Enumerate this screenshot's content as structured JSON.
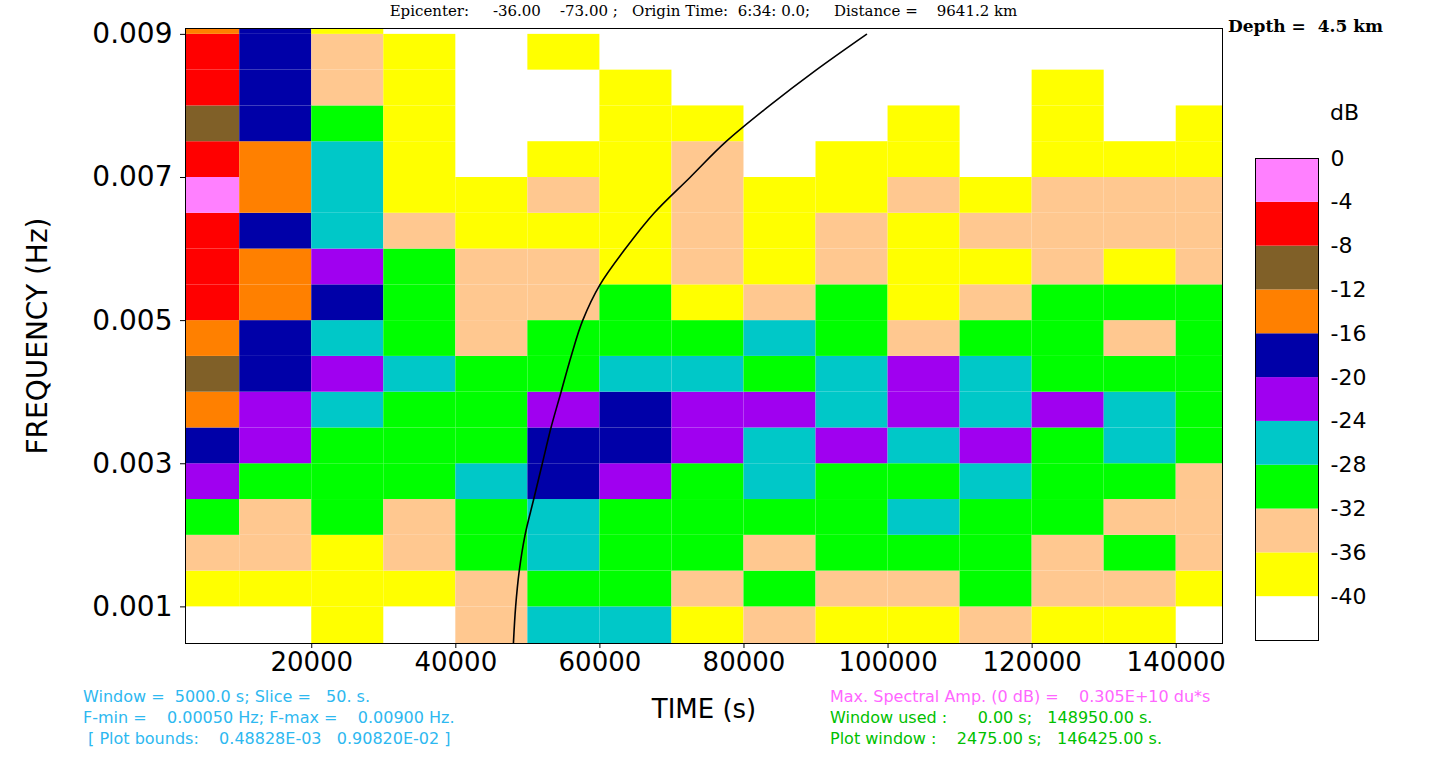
{
  "chart_data": {
    "type": "heatmap",
    "title": "Epicenter:     -36.00    -73.00 ;   Origin Time:  6:34: 0.0;     Distance =    9641.2 km",
    "subtitle": "Depth =  4.5 km",
    "x_label": "TIME (s)",
    "y_label": "FREQUENCY (Hz)",
    "xlim": [
      2475,
      146425
    ],
    "ylim": [
      0.00048828,
      0.009082
    ],
    "xticks": [
      20000,
      40000,
      60000,
      80000,
      100000,
      120000,
      140000
    ],
    "yticks": [
      0.001,
      0.003,
      0.005,
      0.007,
      0.009
    ],
    "time_bins": [
      2475,
      10000,
      20000,
      30000,
      40000,
      50000,
      60000,
      70000,
      80000,
      90000,
      100000,
      110000,
      120000,
      130000,
      140000,
      146425
    ],
    "frequency_bins": [
      0.00048828,
      0.001,
      0.0015,
      0.002,
      0.0025,
      0.003,
      0.0035,
      0.004,
      0.0045,
      0.005,
      0.0055,
      0.006,
      0.0065,
      0.007,
      0.0075,
      0.008,
      0.0085,
      0.009,
      0.009082
    ],
    "values": [
      [
        null,
        null,
        -38,
        null,
        -34,
        -26,
        -26,
        -38,
        -34,
        -38,
        -38,
        -34,
        -38,
        -38,
        null
      ],
      [
        -38,
        -38,
        -38,
        -38,
        -34,
        -30,
        -30,
        -34,
        -30,
        -34,
        -34,
        -30,
        -34,
        -34,
        -38
      ],
      [
        -34,
        -34,
        -38,
        -34,
        -30,
        -26,
        -30,
        -30,
        -34,
        -30,
        -30,
        -30,
        -34,
        -30,
        -34
      ],
      [
        -30,
        -34,
        -30,
        -34,
        -30,
        -26,
        -30,
        -30,
        -30,
        -30,
        -26,
        -30,
        -30,
        -34,
        -34
      ],
      [
        -22,
        -30,
        -30,
        -30,
        -26,
        -18,
        -22,
        -30,
        -26,
        -30,
        -30,
        -26,
        -30,
        -30,
        -34
      ],
      [
        -18,
        -22,
        -30,
        -30,
        -30,
        -18,
        -18,
        -22,
        -26,
        -22,
        -26,
        -22,
        -30,
        -26,
        -30
      ],
      [
        -14,
        -22,
        -26,
        -30,
        -30,
        -22,
        -18,
        -22,
        -22,
        -26,
        -22,
        -26,
        -22,
        -26,
        -30
      ],
      [
        -10,
        -18,
        -22,
        -26,
        -30,
        -30,
        -26,
        -26,
        -30,
        -26,
        -22,
        -26,
        -30,
        -30,
        -30
      ],
      [
        -14,
        -18,
        -26,
        -30,
        -34,
        -30,
        -30,
        -30,
        -26,
        -30,
        -34,
        -30,
        -30,
        -34,
        -30
      ],
      [
        -6,
        -14,
        -18,
        -30,
        -34,
        -34,
        -30,
        -38,
        -34,
        -30,
        -38,
        -34,
        -30,
        -30,
        -30
      ],
      [
        -6,
        -14,
        -22,
        -30,
        -34,
        -34,
        -38,
        -34,
        -38,
        -34,
        -38,
        -38,
        -34,
        -38,
        -34
      ],
      [
        -6,
        -18,
        -26,
        -34,
        -38,
        -38,
        -38,
        -34,
        -38,
        -34,
        -38,
        -34,
        -34,
        -34,
        -34
      ],
      [
        -2,
        -14,
        -26,
        -38,
        -38,
        -34,
        -38,
        -34,
        -38,
        -38,
        -34,
        -38,
        -34,
        -34,
        -34
      ],
      [
        -6,
        -14,
        -26,
        -38,
        null,
        -38,
        -38,
        -34,
        null,
        -38,
        -38,
        null,
        -38,
        -38,
        -38
      ],
      [
        -10,
        -18,
        -30,
        -38,
        null,
        null,
        -38,
        -38,
        null,
        null,
        -38,
        null,
        -38,
        null,
        -38
      ],
      [
        -6,
        -18,
        -34,
        -38,
        null,
        null,
        -38,
        null,
        null,
        null,
        null,
        null,
        -38,
        null,
        null
      ],
      [
        -6,
        -18,
        -34,
        -38,
        null,
        -38,
        null,
        null,
        null,
        null,
        null,
        null,
        null,
        null,
        null
      ],
      [
        -14,
        -18,
        -38,
        null,
        null,
        null,
        null,
        null,
        null,
        null,
        null,
        null,
        null,
        null,
        null
      ]
    ],
    "colorbar": {
      "label": "dB",
      "range": [
        -44,
        0
      ],
      "ticks": [
        -40,
        -36,
        -32,
        -28,
        -24,
        -20,
        -16,
        -12,
        -8,
        -4,
        0
      ],
      "colors": [
        "#ffffff",
        "#ffff00",
        "#ffc890",
        "#00ff00",
        "#00c8c8",
        "#a000f0",
        "#0000a8",
        "#ff8000",
        "#806028",
        "#ff0000",
        "#ff80ff"
      ]
    },
    "curve": {
      "color": "#000000",
      "x": [
        48000,
        48300,
        48800,
        49600,
        50800,
        52000,
        53200,
        54600,
        56000,
        57600,
        60000,
        63500,
        67500,
        72500,
        77500,
        83500,
        90000,
        97000
      ],
      "y": [
        0.0005,
        0.001,
        0.0015,
        0.002,
        0.0025,
        0.003,
        0.0035,
        0.004,
        0.0045,
        0.005,
        0.0055,
        0.006,
        0.0065,
        0.007,
        0.0075,
        0.008,
        0.0085,
        0.009
      ]
    },
    "notes_left": {
      "color": "#2db8f0",
      "lines": [
        "Window =  5000.0 s; Slice =   50. s.",
        "F-min =    0.00050 Hz; F-max =    0.00900 Hz.",
        " [ Plot bounds:    0.48828E-03   0.90820E-02 ]"
      ]
    },
    "notes_right": [
      {
        "text": "Max. Spectral Amp. (0 dB) =    0.305E+10 du*s",
        "color": "#ff66ff"
      },
      {
        "text": "Window used :      0.00 s;   148950.00 s.",
        "color": "#00c000"
      },
      {
        "text": "Plot window :    2475.00 s;   146425.00 s.",
        "color": "#00c000"
      }
    ]
  }
}
